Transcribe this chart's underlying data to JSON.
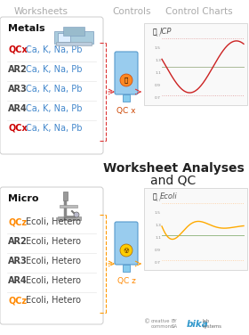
{
  "title_worksheets": "Worksheets",
  "title_controls": "Controls",
  "title_charts": "Control Charts",
  "metals_title": "Metals",
  "micro_title": "Micro",
  "metals_rows": [
    {
      "label": "QCx",
      "label_color": "#cc0000",
      "text": "Ca, K, Na, Pb",
      "text_color": "#4488cc",
      "is_qc": true
    },
    {
      "label": "AR2",
      "label_color": "#444444",
      "text": "Ca, K, Na, Pb",
      "text_color": "#4488cc",
      "is_qc": false
    },
    {
      "label": "AR3",
      "label_color": "#444444",
      "text": "Ca, K, Na, Pb",
      "text_color": "#4488cc",
      "is_qc": false
    },
    {
      "label": "AR4",
      "label_color": "#444444",
      "text": "Ca, K, Na, Pb",
      "text_color": "#4488cc",
      "is_qc": false
    },
    {
      "label": "QCx",
      "label_color": "#cc0000",
      "text": "Ca, K, Na, Pb",
      "text_color": "#4488cc",
      "is_qc": true
    }
  ],
  "micro_rows": [
    {
      "label": "QCz",
      "label_color": "#ff8800",
      "text": "Ecoli, Hetero",
      "text_color": "#444444",
      "is_qc": true
    },
    {
      "label": "AR2",
      "label_color": "#444444",
      "text": "Ecoli, Hetero",
      "text_color": "#444444",
      "is_qc": false
    },
    {
      "label": "AR3",
      "label_color": "#444444",
      "text": "Ecoli, Hetero",
      "text_color": "#444444",
      "is_qc": false
    },
    {
      "label": "AR4",
      "label_color": "#444444",
      "text": "Ecoli, Hetero",
      "text_color": "#444444",
      "is_qc": false
    },
    {
      "label": "QCz",
      "label_color": "#ff8800",
      "text": "Ecoli, Hetero",
      "text_color": "#444444",
      "is_qc": true
    }
  ],
  "center_title_line1": "Worksheet Analyses",
  "center_title_line2": "and QC",
  "qc_label_metals": "QC x",
  "qc_label_micro": "QC z",
  "icp_label": "ICP",
  "ecoli_label": "Ecoli",
  "bg_color": "#ffffff",
  "box_border_color": "#cccccc",
  "dash_color_red": "#dd3333",
  "dash_color_orange": "#ff9900",
  "red_curve_color": "#cc2222",
  "orange_curve_color": "#ffaa00",
  "green_line_color": "#99bb88",
  "dotted_upper_red": "#dd9999",
  "dotted_lower_red": "#dd9999",
  "dotted_upper_orange": "#ffcc99",
  "dotted_lower_orange": "#ffcc99"
}
